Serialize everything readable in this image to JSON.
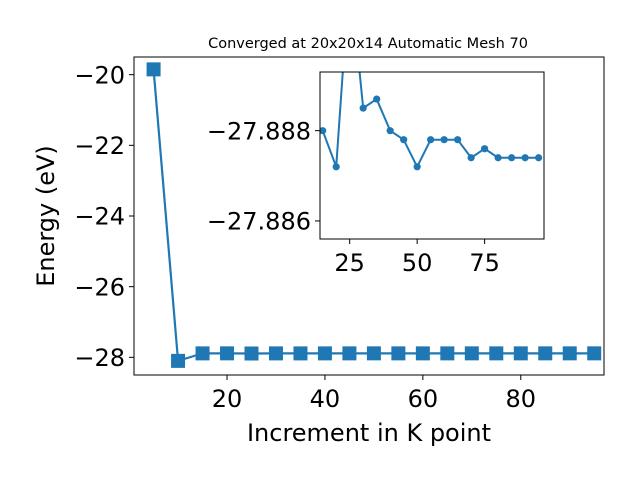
{
  "chart_data": [
    {
      "type": "line",
      "title": "Converged at 20x20x14 Automatic Mesh 70",
      "xlabel": "Increment in K point",
      "ylabel": "Energy (eV)",
      "xlim": [
        1,
        97
      ],
      "ylim": [
        -28.5,
        -19.5
      ],
      "xticks": [
        20,
        40,
        60,
        80
      ],
      "yticks": [
        -28,
        -26,
        -24,
        -22,
        -20
      ],
      "xtick_labels": [
        "20",
        "40",
        "60",
        "80"
      ],
      "ytick_labels": [
        "−28",
        "−26",
        "−24",
        "−22",
        "−20"
      ],
      "grid": false,
      "marker": "square",
      "series": [
        {
          "x": [
            5,
            10,
            15,
            20,
            25,
            30,
            35,
            40,
            45,
            50,
            55,
            60,
            65,
            70,
            75,
            80,
            85,
            90,
            95
          ],
          "y": [
            -19.85,
            -28.1,
            -27.888,
            -27.8872,
            -27.8915,
            -27.8885,
            -27.8887,
            -27.888,
            -27.8878,
            -27.8872,
            -27.8878,
            -27.8878,
            -27.8878,
            -27.8874,
            -27.8876,
            -27.8874,
            -27.8874,
            -27.8874,
            -27.8874
          ]
        }
      ]
    },
    {
      "type": "line",
      "title": "",
      "xlim": [
        14,
        97
      ],
      "ylim": [
        -27.8856,
        -27.8893
      ],
      "xticks": [
        25,
        50,
        75
      ],
      "yticks": [
        -27.888,
        -27.886
      ],
      "xtick_labels": [
        "25",
        "50",
        "75"
      ],
      "ytick_labels": [
        "−27.888",
        "−27.886"
      ],
      "grid": false,
      "marker": "circle",
      "series": [
        {
          "x": [
            15,
            20,
            25,
            30,
            35,
            40,
            45,
            50,
            55,
            60,
            65,
            70,
            75,
            80,
            85,
            90,
            95
          ],
          "y": [
            -27.888,
            -27.8872,
            -27.8915,
            -27.8885,
            -27.8887,
            -27.888,
            -27.8878,
            -27.8872,
            -27.8878,
            -27.8878,
            -27.8878,
            -27.8874,
            -27.8876,
            -27.8874,
            -27.8874,
            -27.8874,
            -27.8874
          ]
        }
      ]
    }
  ],
  "colors": {
    "series": "#1f77b4",
    "axis": "#000000",
    "background": "#ffffff"
  }
}
